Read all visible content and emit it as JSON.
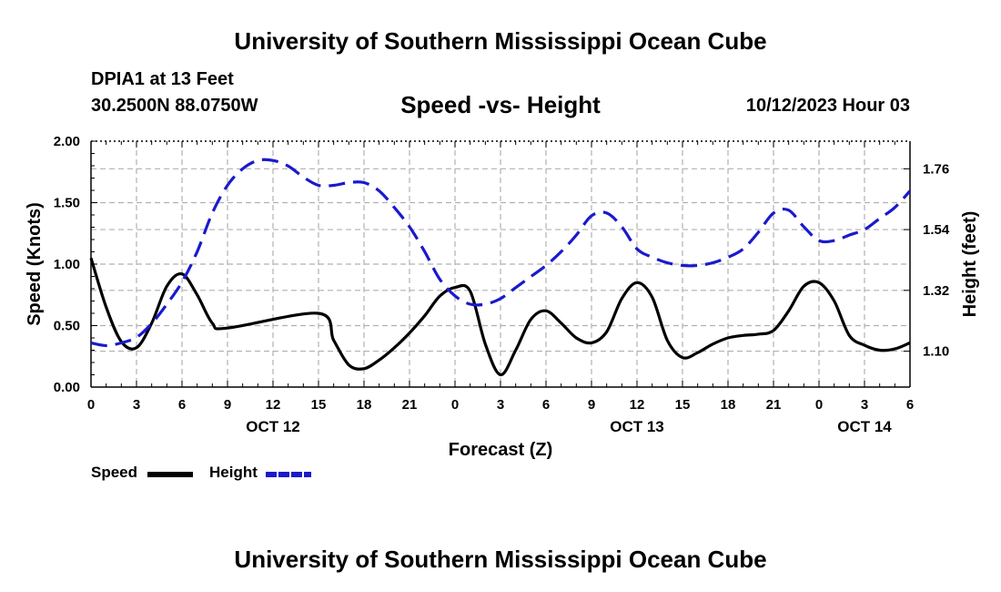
{
  "header": {
    "title": "University of Southern Mississippi Ocean Cube",
    "station": "DPIA1 at 13 Feet",
    "coords": "30.2500N  88.0750W",
    "subtitle": "Speed -vs- Height",
    "datetime": "10/12/2023 Hour 03"
  },
  "footer": {
    "title": "University of Southern Mississippi Ocean Cube"
  },
  "legend": {
    "speed_label": "Speed",
    "height_label": "Height"
  },
  "chart_data": {
    "type": "line",
    "title": "Speed -vs- Height",
    "xlabel": "Forecast (Z)",
    "ylabel": "Speed (Knots)",
    "ylabel_right": "Height (feet)",
    "xlim": [
      0,
      54
    ],
    "ylim": [
      0,
      2
    ],
    "ylim_right": [
      0.97,
      1.86
    ],
    "x_ticks": [
      0,
      3,
      6,
      9,
      12,
      15,
      18,
      21,
      24,
      27,
      30,
      33,
      36,
      39,
      42,
      45,
      48,
      51,
      54
    ],
    "x_tick_labels": [
      "0",
      "3",
      "6",
      "9",
      "12",
      "15",
      "18",
      "21",
      "0",
      "3",
      "6",
      "9",
      "12",
      "15",
      "18",
      "21",
      "0",
      "3",
      "6"
    ],
    "date_labels": [
      {
        "x": 12,
        "text": "OCT 12"
      },
      {
        "x": 36,
        "text": "OCT 13"
      },
      {
        "x": 51,
        "text": "OCT 14"
      }
    ],
    "y_ticks": [
      0.0,
      0.5,
      1.0,
      1.5,
      2.0
    ],
    "y_tick_labels": [
      "0.00",
      "0.50",
      "1.00",
      "1.50",
      "2.00"
    ],
    "y_right_ticks": [
      1.1,
      1.32,
      1.54,
      1.76
    ],
    "y_right_tick_labels": [
      "1.10",
      "1.32",
      "1.54",
      "1.76"
    ],
    "grid": true,
    "colors": {
      "speed": "#000000",
      "height": "#1a1acc",
      "grid": "#b0b0b0"
    },
    "series": [
      {
        "name": "Speed",
        "axis": "left",
        "style": "solid",
        "x": [
          0,
          1,
          2,
          3,
          4,
          5,
          6,
          7,
          8,
          9,
          15,
          16,
          17,
          18,
          19,
          20,
          21,
          22,
          23,
          24,
          25,
          26,
          27,
          28,
          29,
          30,
          31,
          32,
          33,
          34,
          35,
          36,
          37,
          38,
          39,
          40,
          41,
          42,
          43,
          44,
          45,
          46,
          47,
          48,
          49,
          50,
          51,
          52,
          53,
          54
        ],
        "values": [
          1.05,
          0.65,
          0.37,
          0.32,
          0.52,
          0.82,
          0.92,
          0.75,
          0.52,
          0.48,
          0.6,
          0.38,
          0.18,
          0.15,
          0.22,
          0.32,
          0.44,
          0.58,
          0.74,
          0.81,
          0.78,
          0.35,
          0.1,
          0.3,
          0.55,
          0.62,
          0.52,
          0.4,
          0.36,
          0.45,
          0.72,
          0.85,
          0.73,
          0.38,
          0.24,
          0.28,
          0.35,
          0.4,
          0.42,
          0.43,
          0.46,
          0.62,
          0.82,
          0.85,
          0.7,
          0.42,
          0.34,
          0.3,
          0.31,
          0.36
        ]
      },
      {
        "name": "Height",
        "axis": "right",
        "style": "dashed",
        "x": [
          0,
          1,
          2,
          3,
          4,
          5,
          6,
          7,
          8,
          9,
          10,
          11,
          12,
          13,
          14,
          15,
          16,
          17,
          18,
          19,
          20,
          21,
          22,
          23,
          24,
          25,
          26,
          27,
          28,
          29,
          30,
          31,
          32,
          33,
          34,
          35,
          36,
          37,
          38,
          39,
          40,
          41,
          42,
          43,
          44,
          45,
          46,
          47,
          48,
          49,
          50,
          51,
          52,
          53,
          54
        ],
        "values": [
          1.13,
          1.12,
          1.13,
          1.15,
          1.2,
          1.27,
          1.35,
          1.46,
          1.6,
          1.7,
          1.76,
          1.79,
          1.79,
          1.77,
          1.73,
          1.7,
          1.7,
          1.71,
          1.71,
          1.68,
          1.62,
          1.55,
          1.46,
          1.36,
          1.3,
          1.27,
          1.27,
          1.29,
          1.33,
          1.37,
          1.41,
          1.46,
          1.52,
          1.59,
          1.6,
          1.55,
          1.47,
          1.44,
          1.42,
          1.41,
          1.41,
          1.42,
          1.44,
          1.47,
          1.53,
          1.6,
          1.61,
          1.55,
          1.5,
          1.5,
          1.52,
          1.54,
          1.58,
          1.62,
          1.68
        ]
      }
    ]
  }
}
